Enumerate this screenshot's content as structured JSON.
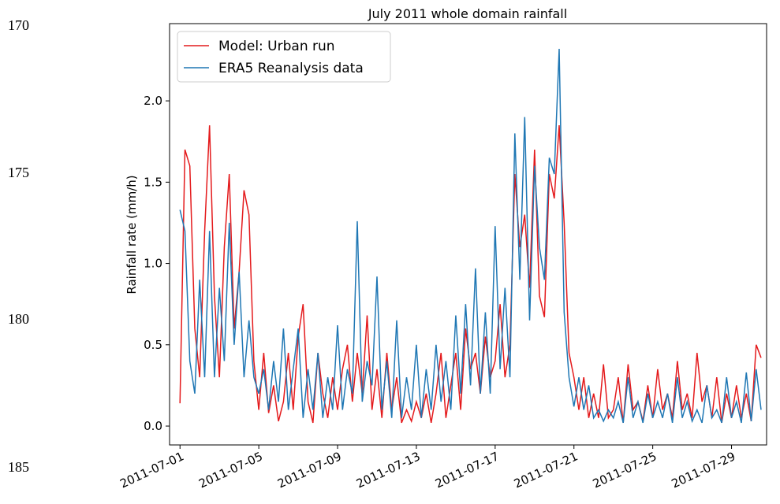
{
  "line_numbers": [
    "170",
    "175",
    "180",
    "185"
  ],
  "chart_data": {
    "type": "line",
    "title": "July 2011 whole domain rainfall",
    "y_label": "Rainfall rate (mm/h)",
    "x": [
      1.0,
      1.25,
      1.5,
      1.75,
      2.0,
      2.25,
      2.5,
      2.75,
      3.0,
      3.25,
      3.5,
      3.75,
      4.0,
      4.25,
      4.5,
      4.75,
      5.0,
      5.25,
      5.5,
      5.75,
      6.0,
      6.25,
      6.5,
      6.75,
      7.0,
      7.25,
      7.5,
      7.75,
      8.0,
      8.25,
      8.5,
      8.75,
      9.0,
      9.25,
      9.5,
      9.75,
      10.0,
      10.25,
      10.5,
      10.75,
      11.0,
      11.25,
      11.5,
      11.75,
      12.0,
      12.25,
      12.5,
      12.75,
      13.0,
      13.25,
      13.5,
      13.75,
      14.0,
      14.25,
      14.5,
      14.75,
      15.0,
      15.25,
      15.5,
      15.75,
      16.0,
      16.25,
      16.5,
      16.75,
      17.0,
      17.25,
      17.5,
      17.75,
      18.0,
      18.25,
      18.5,
      18.75,
      19.0,
      19.25,
      19.5,
      19.75,
      20.0,
      20.25,
      20.5,
      20.75,
      21.0,
      21.25,
      21.5,
      21.75,
      22.0,
      22.25,
      22.5,
      22.75,
      23.0,
      23.25,
      23.5,
      23.75,
      24.0,
      24.25,
      24.5,
      24.75,
      25.0,
      25.25,
      25.5,
      25.75,
      26.0,
      26.25,
      26.5,
      26.75,
      27.0,
      27.25,
      27.5,
      27.75,
      28.0,
      28.25,
      28.5,
      28.75,
      29.0,
      29.25,
      29.5,
      29.75,
      30.0,
      30.25,
      30.5
    ],
    "series": [
      {
        "name": "Model: Urban run",
        "color": "#e41a1c",
        "values": [
          0.14,
          1.7,
          1.6,
          0.6,
          0.3,
          1.2,
          1.85,
          0.8,
          0.3,
          1.1,
          1.55,
          0.6,
          0.95,
          1.45,
          1.3,
          0.4,
          0.1,
          0.45,
          0.08,
          0.25,
          0.03,
          0.15,
          0.45,
          0.1,
          0.55,
          0.75,
          0.15,
          0.02,
          0.45,
          0.2,
          0.05,
          0.3,
          0.1,
          0.35,
          0.5,
          0.15,
          0.45,
          0.2,
          0.68,
          0.1,
          0.35,
          0.05,
          0.45,
          0.1,
          0.3,
          0.02,
          0.1,
          0.03,
          0.15,
          0.05,
          0.2,
          0.02,
          0.2,
          0.45,
          0.05,
          0.25,
          0.45,
          0.1,
          0.6,
          0.35,
          0.45,
          0.2,
          0.55,
          0.3,
          0.4,
          0.75,
          0.3,
          0.5,
          1.55,
          1.1,
          1.3,
          0.85,
          1.7,
          0.8,
          0.67,
          1.55,
          1.4,
          1.85,
          1.25,
          0.45,
          0.3,
          0.1,
          0.3,
          0.05,
          0.2,
          0.05,
          0.38,
          0.05,
          0.1,
          0.3,
          0.02,
          0.38,
          0.1,
          0.15,
          0.03,
          0.25,
          0.05,
          0.35,
          0.1,
          0.2,
          0.05,
          0.4,
          0.1,
          0.2,
          0.05,
          0.45,
          0.15,
          0.25,
          0.05,
          0.3,
          0.02,
          0.2,
          0.05,
          0.25,
          0.05,
          0.2,
          0.03,
          0.5,
          0.42
        ]
      },
      {
        "name": "ERA5 Reanalysis data",
        "color": "#1f77b4",
        "values": [
          1.33,
          1.2,
          0.4,
          0.2,
          0.9,
          0.3,
          1.2,
          0.3,
          0.85,
          0.4,
          1.25,
          0.5,
          0.95,
          0.3,
          0.65,
          0.3,
          0.2,
          0.35,
          0.1,
          0.4,
          0.15,
          0.6,
          0.1,
          0.35,
          0.6,
          0.05,
          0.35,
          0.1,
          0.45,
          0.05,
          0.3,
          0.1,
          0.62,
          0.1,
          0.35,
          0.2,
          1.26,
          0.15,
          0.4,
          0.25,
          0.92,
          0.1,
          0.4,
          0.05,
          0.65,
          0.05,
          0.3,
          0.1,
          0.5,
          0.05,
          0.35,
          0.1,
          0.5,
          0.15,
          0.4,
          0.1,
          0.68,
          0.2,
          0.75,
          0.25,
          0.97,
          0.2,
          0.7,
          0.2,
          1.23,
          0.35,
          0.85,
          0.3,
          1.8,
          0.9,
          1.9,
          0.65,
          1.6,
          1.1,
          0.9,
          1.65,
          1.55,
          2.32,
          0.7,
          0.3,
          0.12,
          0.3,
          0.1,
          0.25,
          0.05,
          0.1,
          0.03,
          0.1,
          0.05,
          0.15,
          0.02,
          0.3,
          0.05,
          0.15,
          0.02,
          0.2,
          0.05,
          0.15,
          0.05,
          0.2,
          0.02,
          0.3,
          0.05,
          0.15,
          0.03,
          0.1,
          0.02,
          0.25,
          0.05,
          0.1,
          0.02,
          0.3,
          0.05,
          0.15,
          0.02,
          0.33,
          0.03,
          0.35,
          0.1
        ]
      }
    ],
    "xlim": [
      0.47,
      30.78
    ],
    "xticks": [
      {
        "value": 1,
        "label": "2011-07-01"
      },
      {
        "value": 5,
        "label": "2011-07-05"
      },
      {
        "value": 9,
        "label": "2011-07-09"
      },
      {
        "value": 13,
        "label": "2011-07-13"
      },
      {
        "value": 17,
        "label": "2011-07-17"
      },
      {
        "value": 21,
        "label": "2011-07-21"
      },
      {
        "value": 25,
        "label": "2011-07-25"
      },
      {
        "value": 29,
        "label": "2011-07-29"
      }
    ],
    "ylim": [
      -0.116,
      2.475
    ],
    "yticks": [
      {
        "value": 0,
        "label": "0.0"
      },
      {
        "value": 0.5,
        "label": "0.5"
      },
      {
        "value": 1,
        "label": "1.0"
      },
      {
        "value": 1.5,
        "label": "1.5"
      },
      {
        "value": 2,
        "label": "2.0"
      }
    ],
    "legend": "upper left"
  }
}
